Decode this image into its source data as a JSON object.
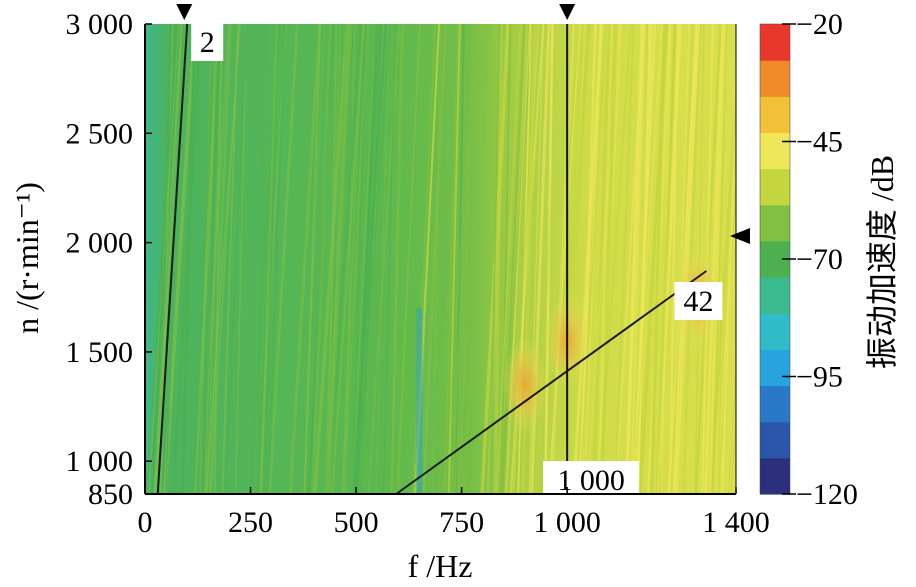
{
  "chart_data": {
    "type": "heatmap",
    "xlabel": "f /Hz",
    "ylabel": "n /(r·min⁻¹)",
    "colorbar_label": "振动加速度 /dB",
    "xlim": [
      0,
      1400
    ],
    "ylim": [
      850,
      3000
    ],
    "xticks": [
      0,
      250,
      500,
      750,
      1000,
      1400
    ],
    "xtick_labels": [
      "0",
      "250",
      "500",
      "750",
      "1 000",
      "1 400"
    ],
    "yticks": [
      850,
      1000,
      1500,
      2000,
      2500,
      3000
    ],
    "ytick_labels": [
      "850",
      "1 000",
      "1 500",
      "2 000",
      "2 500",
      "3 000"
    ],
    "colorbar_range": [
      -120,
      -20
    ],
    "colorbar_ticks": [
      -120,
      -95,
      -70,
      -45,
      -20
    ],
    "colorbar_tick_labels": [
      "−120",
      "−95",
      "−70",
      "−45",
      "−20"
    ],
    "colormap": [
      "#2b2f7e",
      "#2a55a8",
      "#2a78c8",
      "#27a3dd",
      "#2fbcc8",
      "#3cba8f",
      "#4cb051",
      "#82c042",
      "#c3d63d",
      "#efe75a",
      "#f2c138",
      "#ee8a2a",
      "#e8382d"
    ],
    "order_lines": [
      {
        "label": "2",
        "points": [
          [
            30,
            850
          ],
          [
            100,
            3000
          ]
        ]
      },
      {
        "label": "42",
        "points": [
          [
            595,
            850
          ],
          [
            1330,
            1870
          ]
        ]
      }
    ],
    "frequency_line": {
      "label": "1 000",
      "x": 1000
    },
    "markers": [
      {
        "axis": "top",
        "x": 93
      },
      {
        "axis": "top",
        "x": 1000
      },
      {
        "axis": "right",
        "y": 2030
      }
    ],
    "field_description_levels": [
      {
        "x_from": 0,
        "x_to": 600,
        "level_dB": -66
      },
      {
        "x_from": 600,
        "x_to": 850,
        "level_dB": -60
      },
      {
        "x_from": 850,
        "x_to": 1400,
        "level_dB": -50
      }
    ],
    "hotspots": [
      {
        "x": 900,
        "y": 1350,
        "level_dB": -38
      },
      {
        "x": 1000,
        "y": 1550,
        "level_dB": -40
      },
      {
        "x": 1310,
        "y": 1750,
        "level_dB": -36
      }
    ],
    "weak_band": {
      "x": 650,
      "level_dB": -80
    }
  }
}
